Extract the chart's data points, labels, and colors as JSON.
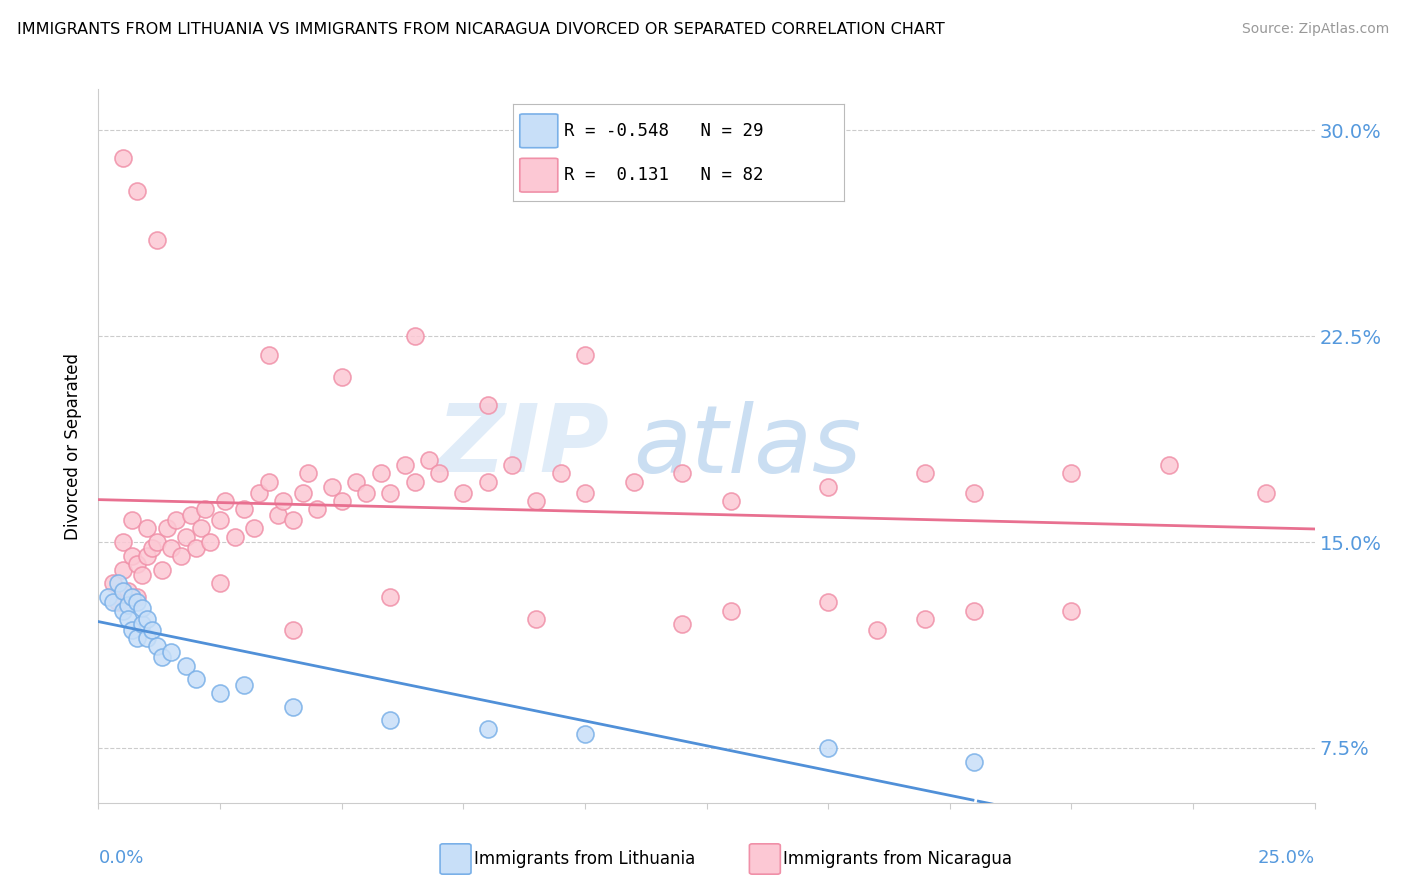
{
  "title": "IMMIGRANTS FROM LITHUANIA VS IMMIGRANTS FROM NICARAGUA DIVORCED OR SEPARATED CORRELATION CHART",
  "source": "Source: ZipAtlas.com",
  "ylabel": "Divorced or Separated",
  "R_lithuania": -0.548,
  "N_lithuania": 29,
  "R_nicaragua": 0.131,
  "N_nicaragua": 82,
  "color_lit_fill": "#c8dff8",
  "color_lit_edge": "#7ab0e8",
  "color_nic_fill": "#fcc8d4",
  "color_nic_edge": "#f090a8",
  "color_line_lit": "#5090d8",
  "color_line_nic": "#e87090",
  "xlim": [
    0.0,
    0.25
  ],
  "ylim": [
    0.055,
    0.315
  ],
  "yticks": [
    0.075,
    0.15,
    0.225,
    0.3
  ],
  "ytick_labels": [
    "7.5%",
    "15.0%",
    "22.5%",
    "30.0%"
  ],
  "axis_label_color": "#5599dd",
  "grid_color": "#cccccc",
  "lit_x": [
    0.002,
    0.003,
    0.004,
    0.005,
    0.005,
    0.006,
    0.006,
    0.007,
    0.007,
    0.008,
    0.008,
    0.009,
    0.009,
    0.01,
    0.01,
    0.011,
    0.012,
    0.013,
    0.015,
    0.018,
    0.02,
    0.025,
    0.03,
    0.04,
    0.06,
    0.08,
    0.1,
    0.15,
    0.18
  ],
  "lit_y": [
    0.13,
    0.128,
    0.135,
    0.125,
    0.132,
    0.127,
    0.122,
    0.13,
    0.118,
    0.128,
    0.115,
    0.12,
    0.126,
    0.115,
    0.122,
    0.118,
    0.112,
    0.108,
    0.11,
    0.105,
    0.1,
    0.095,
    0.098,
    0.09,
    0.085,
    0.082,
    0.08,
    0.075,
    0.07
  ],
  "nic_x": [
    0.003,
    0.004,
    0.005,
    0.005,
    0.006,
    0.007,
    0.007,
    0.008,
    0.008,
    0.009,
    0.01,
    0.01,
    0.011,
    0.012,
    0.013,
    0.014,
    0.015,
    0.016,
    0.017,
    0.018,
    0.019,
    0.02,
    0.021,
    0.022,
    0.023,
    0.025,
    0.026,
    0.028,
    0.03,
    0.032,
    0.033,
    0.035,
    0.037,
    0.038,
    0.04,
    0.042,
    0.043,
    0.045,
    0.048,
    0.05,
    0.053,
    0.055,
    0.058,
    0.06,
    0.063,
    0.065,
    0.068,
    0.07,
    0.075,
    0.08,
    0.085,
    0.09,
    0.095,
    0.1,
    0.11,
    0.12,
    0.13,
    0.15,
    0.17,
    0.18,
    0.2,
    0.22,
    0.24,
    0.005,
    0.008,
    0.012,
    0.035,
    0.05,
    0.065,
    0.08,
    0.1,
    0.12,
    0.15,
    0.17,
    0.2,
    0.025,
    0.04,
    0.06,
    0.09,
    0.13,
    0.16,
    0.18
  ],
  "nic_y": [
    0.135,
    0.128,
    0.14,
    0.15,
    0.132,
    0.145,
    0.158,
    0.13,
    0.142,
    0.138,
    0.145,
    0.155,
    0.148,
    0.15,
    0.14,
    0.155,
    0.148,
    0.158,
    0.145,
    0.152,
    0.16,
    0.148,
    0.155,
    0.162,
    0.15,
    0.158,
    0.165,
    0.152,
    0.162,
    0.155,
    0.168,
    0.172,
    0.16,
    0.165,
    0.158,
    0.168,
    0.175,
    0.162,
    0.17,
    0.165,
    0.172,
    0.168,
    0.175,
    0.168,
    0.178,
    0.172,
    0.18,
    0.175,
    0.168,
    0.172,
    0.178,
    0.165,
    0.175,
    0.168,
    0.172,
    0.175,
    0.165,
    0.17,
    0.175,
    0.168,
    0.175,
    0.178,
    0.168,
    0.29,
    0.278,
    0.26,
    0.218,
    0.21,
    0.225,
    0.2,
    0.218,
    0.12,
    0.128,
    0.122,
    0.125,
    0.135,
    0.118,
    0.13,
    0.122,
    0.125,
    0.118,
    0.125
  ]
}
